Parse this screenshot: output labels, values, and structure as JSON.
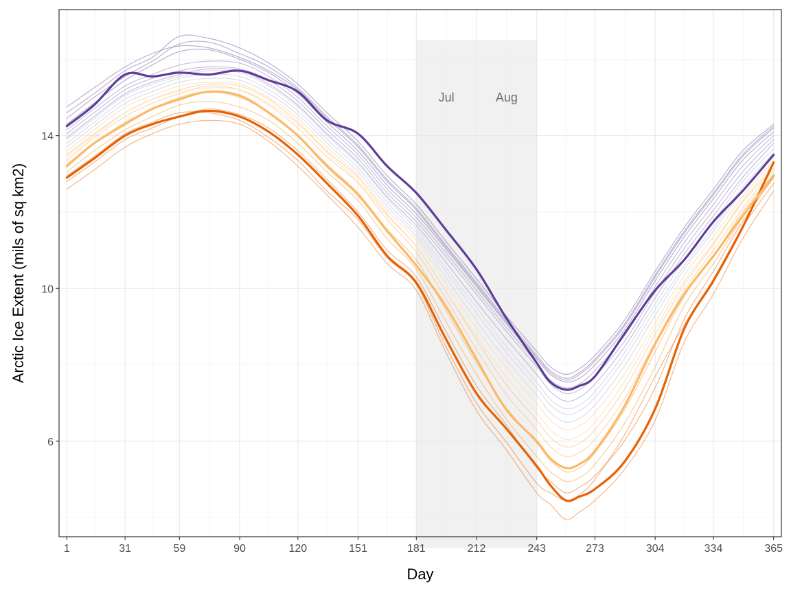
{
  "chart_data": {
    "type": "line",
    "title": "",
    "xlabel": "Day",
    "ylabel": "Arctic Ice Extent (mils of sq km2)",
    "xlim": [
      -3,
      369
    ],
    "ylim": [
      3.5,
      17.3
    ],
    "x_ticks": [
      1,
      31,
      59,
      90,
      120,
      151,
      181,
      212,
      243,
      273,
      304,
      334,
      365
    ],
    "y_ticks": [
      6,
      10,
      14
    ],
    "x_minor_gridlines": [
      16,
      45,
      74.5,
      105,
      135.5,
      166,
      196.5,
      227.5,
      258,
      288.5,
      319,
      349.5
    ],
    "y_minor_gridlines": [
      4,
      8,
      12,
      16
    ],
    "grid": true,
    "legend": "none",
    "shaded_region": {
      "x": [
        181,
        243
      ],
      "y": [
        3.2,
        16.5
      ],
      "color": "#e5e5e5"
    },
    "month_annotations": [
      {
        "label": "Jul",
        "x": 196.5,
        "y": 15.0
      },
      {
        "label": "Aug",
        "x": 227.5,
        "y": 15.0
      }
    ],
    "x_profile": [
      1,
      15,
      31,
      45,
      59,
      74,
      90,
      105,
      120,
      135,
      151,
      166,
      181,
      196,
      212,
      227,
      243,
      250,
      258,
      265,
      273,
      288,
      304,
      319,
      334,
      349,
      365
    ],
    "series": [
      {
        "color": "#5e3c99",
        "width": 3.2,
        "opacity": 1,
        "y": [
          14.25,
          14.8,
          15.6,
          15.55,
          15.65,
          15.6,
          15.7,
          15.45,
          15.15,
          14.4,
          14.05,
          13.2,
          12.5,
          11.55,
          10.5,
          9.25,
          8.05,
          7.55,
          7.35,
          7.45,
          7.7,
          8.8,
          9.95,
          10.75,
          11.75,
          12.55,
          13.5
        ]
      },
      {
        "color": "#e66101",
        "width": 3.2,
        "opacity": 1,
        "y": [
          12.9,
          13.4,
          14.0,
          14.3,
          14.5,
          14.65,
          14.5,
          14.1,
          13.5,
          12.75,
          11.9,
          10.85,
          10.15,
          8.7,
          7.25,
          6.35,
          5.35,
          4.85,
          4.45,
          4.55,
          4.75,
          5.45,
          6.85,
          8.95,
          10.2,
          11.6,
          13.3
        ]
      },
      {
        "color": "#fdb863",
        "width": 3.2,
        "opacity": 1,
        "y": [
          13.2,
          13.8,
          14.3,
          14.7,
          14.95,
          15.15,
          15.05,
          14.6,
          14.0,
          13.2,
          12.45,
          11.5,
          10.6,
          9.55,
          8.15,
          6.85,
          6.0,
          5.55,
          5.3,
          5.4,
          5.75,
          6.9,
          8.55,
          9.85,
          10.85,
          11.9,
          12.95
        ]
      },
      {
        "color": "#e66101",
        "width": 1.2,
        "opacity": 0.45,
        "y": [
          12.6,
          13.1,
          13.7,
          14.05,
          14.3,
          14.4,
          14.3,
          13.85,
          13.2,
          12.45,
          11.6,
          10.65,
          9.95,
          8.35,
          6.8,
          5.8,
          4.65,
          4.35,
          3.95,
          4.15,
          4.45,
          5.25,
          6.55,
          8.6,
          9.85,
          11.3,
          12.55
        ]
      },
      {
        "color": "#e66101",
        "width": 1.2,
        "opacity": 0.45,
        "y": [
          12.8,
          13.3,
          13.9,
          14.2,
          14.5,
          14.7,
          14.55,
          14.2,
          13.6,
          12.85,
          12.0,
          11.0,
          10.3,
          8.9,
          7.45,
          6.45,
          5.3,
          4.95,
          4.65,
          4.8,
          5.1,
          6.0,
          7.4,
          9.2,
          10.45,
          11.75,
          12.9
        ]
      },
      {
        "color": "#e66101",
        "width": 1.2,
        "opacity": 0.45,
        "y": [
          12.95,
          13.45,
          14.05,
          14.35,
          14.6,
          14.6,
          14.4,
          13.95,
          13.35,
          12.55,
          11.8,
          10.8,
          10.1,
          8.5,
          7.0,
          6.0,
          4.9,
          4.65,
          4.45,
          4.6,
          5.0,
          6.15,
          7.7,
          9.05,
          10.25,
          11.6,
          12.75
        ]
      },
      {
        "color": "#f1a340",
        "width": 1.2,
        "opacity": 0.5,
        "y": [
          13.05,
          13.6,
          14.15,
          14.5,
          14.8,
          14.9,
          14.75,
          14.4,
          13.8,
          13.05,
          12.3,
          11.3,
          10.5,
          9.15,
          7.75,
          6.6,
          5.6,
          5.2,
          4.95,
          5.05,
          5.4,
          6.45,
          7.95,
          9.55,
          10.65,
          11.85,
          12.95
        ]
      },
      {
        "color": "#f1a340",
        "width": 1.2,
        "opacity": 0.5,
        "y": [
          13.25,
          13.8,
          14.35,
          14.7,
          15.0,
          15.15,
          15.0,
          14.6,
          14.0,
          13.25,
          12.5,
          11.55,
          10.75,
          9.45,
          8.05,
          6.9,
          5.95,
          5.5,
          5.2,
          5.3,
          5.7,
          6.8,
          8.35,
          9.8,
          10.85,
          12.0,
          13.0
        ]
      },
      {
        "color": "#fdb863",
        "width": 1.2,
        "opacity": 0.5,
        "y": [
          13.35,
          13.95,
          14.5,
          14.85,
          15.1,
          15.3,
          15.2,
          14.8,
          14.2,
          13.45,
          12.75,
          11.8,
          10.95,
          9.75,
          8.4,
          7.25,
          6.3,
          5.85,
          5.6,
          5.7,
          6.05,
          7.1,
          8.6,
          9.95,
          11.0,
          12.1,
          13.1
        ]
      },
      {
        "color": "#fdb863",
        "width": 1.2,
        "opacity": 0.5,
        "y": [
          13.5,
          14.05,
          14.6,
          14.95,
          15.2,
          15.35,
          15.3,
          14.95,
          14.35,
          13.6,
          12.9,
          11.95,
          11.1,
          9.95,
          8.65,
          7.5,
          6.55,
          6.1,
          5.85,
          5.95,
          6.3,
          7.35,
          8.8,
          10.1,
          11.15,
          12.25,
          13.15
        ]
      },
      {
        "color": "#fee0b6",
        "width": 1.2,
        "opacity": 0.8,
        "y": [
          13.45,
          14.0,
          14.6,
          14.95,
          15.15,
          15.25,
          15.2,
          14.85,
          14.3,
          13.55,
          12.8,
          11.9,
          11.1,
          9.95,
          8.75,
          7.7,
          6.75,
          6.3,
          6.05,
          6.15,
          6.5,
          7.55,
          8.95,
          10.2,
          11.2,
          12.3,
          13.25
        ]
      },
      {
        "color": "#fee0b6",
        "width": 1.2,
        "opacity": 0.8,
        "y": [
          13.6,
          14.15,
          14.75,
          15.05,
          15.3,
          15.4,
          15.35,
          15.0,
          14.45,
          13.7,
          12.95,
          12.05,
          11.25,
          10.15,
          8.95,
          7.95,
          7.0,
          6.55,
          6.3,
          6.4,
          6.75,
          7.75,
          9.1,
          10.35,
          11.35,
          12.4,
          13.35
        ]
      },
      {
        "color": "#d8daeb",
        "width": 1.2,
        "opacity": 0.9,
        "y": [
          13.7,
          14.25,
          14.85,
          15.15,
          15.4,
          15.5,
          15.45,
          15.1,
          14.55,
          13.8,
          13.05,
          12.15,
          11.35,
          10.3,
          9.15,
          8.15,
          7.2,
          6.75,
          6.5,
          6.6,
          6.95,
          7.95,
          9.3,
          10.5,
          11.5,
          12.55,
          13.45
        ]
      },
      {
        "color": "#d8daeb",
        "width": 1.2,
        "opacity": 0.9,
        "y": [
          13.8,
          14.35,
          14.95,
          15.25,
          15.5,
          15.6,
          15.55,
          15.2,
          14.65,
          13.9,
          13.15,
          12.25,
          11.45,
          10.45,
          9.35,
          8.35,
          7.4,
          6.95,
          6.7,
          6.8,
          7.15,
          8.15,
          9.45,
          10.6,
          11.6,
          12.65,
          13.55
        ]
      },
      {
        "color": "#d8daeb",
        "width": 1.2,
        "opacity": 0.9,
        "y": [
          13.9,
          14.45,
          15.05,
          15.35,
          15.55,
          15.7,
          15.65,
          15.3,
          14.75,
          14.0,
          13.25,
          12.35,
          11.55,
          10.55,
          9.5,
          8.5,
          7.55,
          7.1,
          6.85,
          6.95,
          7.3,
          8.3,
          9.6,
          10.75,
          11.75,
          12.8,
          13.65
        ]
      },
      {
        "color": "#b2abd2",
        "width": 1.2,
        "opacity": 0.75,
        "y": [
          13.95,
          14.5,
          15.1,
          15.4,
          15.6,
          15.75,
          15.7,
          15.35,
          14.8,
          14.05,
          13.3,
          12.4,
          11.65,
          10.7,
          9.65,
          8.7,
          7.75,
          7.3,
          7.05,
          7.15,
          7.5,
          8.45,
          9.75,
          10.9,
          11.9,
          12.9,
          13.8
        ]
      },
      {
        "color": "#b2abd2",
        "width": 1.2,
        "opacity": 0.75,
        "y": [
          14.05,
          14.6,
          15.2,
          15.5,
          15.7,
          15.8,
          15.75,
          15.45,
          14.9,
          14.15,
          13.4,
          12.5,
          11.75,
          10.85,
          9.85,
          8.9,
          7.95,
          7.5,
          7.25,
          7.35,
          7.7,
          8.6,
          9.9,
          11.05,
          12.05,
          13.05,
          13.9
        ]
      },
      {
        "color": "#b2abd2",
        "width": 1.2,
        "opacity": 0.75,
        "y": [
          14.15,
          14.7,
          15.3,
          15.6,
          15.85,
          15.95,
          15.9,
          15.55,
          15.0,
          14.25,
          13.5,
          12.6,
          11.85,
          10.95,
          9.95,
          9.0,
          8.05,
          7.6,
          7.4,
          7.5,
          7.85,
          8.75,
          10.05,
          11.2,
          12.2,
          13.2,
          14.0
        ]
      },
      {
        "color": "#8073ac",
        "width": 1.2,
        "opacity": 0.55,
        "y": [
          14.3,
          14.85,
          15.45,
          15.85,
          16.2,
          16.25,
          16.0,
          15.65,
          15.1,
          14.35,
          13.6,
          12.7,
          11.95,
          11.05,
          10.05,
          9.1,
          8.15,
          7.75,
          7.55,
          7.65,
          8.0,
          8.9,
          10.2,
          11.35,
          12.35,
          13.35,
          14.1
        ]
      },
      {
        "color": "#8073ac",
        "width": 1.2,
        "opacity": 0.55,
        "y": [
          14.45,
          15.0,
          15.55,
          15.95,
          16.4,
          16.45,
          16.15,
          15.8,
          15.25,
          14.5,
          13.75,
          12.85,
          12.1,
          11.15,
          10.15,
          9.2,
          8.25,
          7.85,
          7.65,
          7.8,
          8.15,
          9.05,
          10.35,
          11.5,
          12.5,
          13.5,
          14.25
        ]
      },
      {
        "color": "#8073ac",
        "width": 1.2,
        "opacity": 0.55,
        "y": [
          14.6,
          15.1,
          15.7,
          16.05,
          16.6,
          16.55,
          16.3,
          15.9,
          15.35,
          14.6,
          13.85,
          12.95,
          12.2,
          11.25,
          10.25,
          9.3,
          8.35,
          7.95,
          7.75,
          7.9,
          8.25,
          9.15,
          10.45,
          11.6,
          12.6,
          13.6,
          14.3
        ]
      },
      {
        "color": "#8073ac",
        "width": 1.2,
        "opacity": 0.55,
        "y": [
          14.75,
          15.25,
          15.8,
          16.15,
          16.35,
          16.3,
          16.05,
          15.7,
          15.2,
          14.45,
          13.7,
          12.8,
          12.05,
          11.1,
          10.1,
          9.15,
          8.2,
          7.8,
          7.6,
          7.75,
          8.1,
          9.0,
          10.3,
          11.45,
          12.45,
          13.45,
          14.2
        ]
      }
    ]
  }
}
